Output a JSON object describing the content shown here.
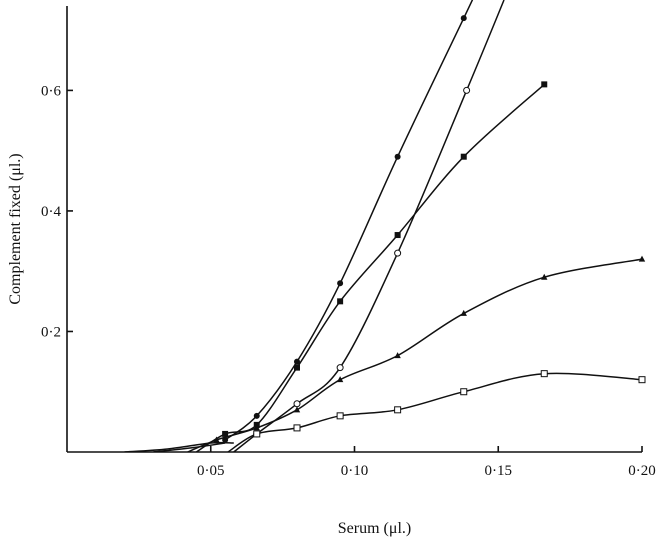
{
  "chart_data": {
    "type": "line",
    "xlabel": "Serum (μl.)",
    "ylabel": "Complement fixed (μl.)",
    "xlim": [
      0,
      0.2
    ],
    "ylim": [
      0,
      0.75
    ],
    "x_ticks": [
      {
        "value": 0.05,
        "label": "0·05"
      },
      {
        "value": 0.1,
        "label": "0·10"
      },
      {
        "value": 0.15,
        "label": "0·15"
      },
      {
        "value": 0.2,
        "label": "0·20"
      }
    ],
    "y_ticks": [
      {
        "value": 0.2,
        "label": "0·2"
      },
      {
        "value": 0.4,
        "label": "0·4"
      },
      {
        "value": 0.6,
        "label": "0·6"
      }
    ],
    "grid": false,
    "series": [
      {
        "marker": "filled-circle",
        "points": [
          [
            0.055,
            0.02
          ],
          [
            0.066,
            0.06
          ],
          [
            0.08,
            0.15
          ],
          [
            0.095,
            0.28
          ],
          [
            0.115,
            0.49
          ],
          [
            0.138,
            0.72
          ]
        ],
        "curve": [
          [
            0.055,
            0.02
          ],
          [
            0.066,
            0.06
          ],
          [
            0.08,
            0.15
          ],
          [
            0.095,
            0.28
          ],
          [
            0.115,
            0.49
          ],
          [
            0.138,
            0.72
          ],
          [
            0.141,
            0.75
          ]
        ]
      },
      {
        "marker": "open-circle",
        "points": [
          [
            0.066,
            0.03
          ],
          [
            0.08,
            0.08
          ],
          [
            0.095,
            0.14
          ],
          [
            0.115,
            0.33
          ],
          [
            0.139,
            0.6
          ]
        ],
        "curve": [
          [
            0.058,
            0.0
          ],
          [
            0.066,
            0.03
          ],
          [
            0.08,
            0.08
          ],
          [
            0.095,
            0.14
          ],
          [
            0.115,
            0.33
          ],
          [
            0.139,
            0.6
          ],
          [
            0.152,
            0.75
          ]
        ]
      },
      {
        "marker": "filled-square",
        "points": [
          [
            0.055,
            0.03
          ],
          [
            0.066,
            0.045
          ],
          [
            0.08,
            0.14
          ],
          [
            0.095,
            0.25
          ],
          [
            0.115,
            0.36
          ],
          [
            0.138,
            0.49
          ],
          [
            0.166,
            0.61
          ]
        ],
        "curve": [
          [
            0.045,
            0.0
          ],
          [
            0.055,
            0.03
          ],
          [
            0.066,
            0.045
          ],
          [
            0.08,
            0.14
          ],
          [
            0.095,
            0.25
          ],
          [
            0.115,
            0.36
          ],
          [
            0.138,
            0.49
          ],
          [
            0.166,
            0.61
          ]
        ]
      },
      {
        "marker": "filled-triangle",
        "points": [
          [
            0.052,
            0.02
          ],
          [
            0.066,
            0.04
          ],
          [
            0.08,
            0.07
          ],
          [
            0.095,
            0.12
          ],
          [
            0.115,
            0.16
          ],
          [
            0.138,
            0.23
          ],
          [
            0.166,
            0.29
          ],
          [
            0.2,
            0.32
          ]
        ],
        "curve": [
          [
            0.042,
            0.0
          ],
          [
            0.052,
            0.02
          ],
          [
            0.066,
            0.04
          ],
          [
            0.08,
            0.07
          ],
          [
            0.095,
            0.12
          ],
          [
            0.115,
            0.16
          ],
          [
            0.138,
            0.23
          ],
          [
            0.166,
            0.29
          ],
          [
            0.2,
            0.32
          ]
        ]
      },
      {
        "marker": "open-square",
        "points": [
          [
            0.066,
            0.03
          ],
          [
            0.08,
            0.04
          ],
          [
            0.095,
            0.06
          ],
          [
            0.115,
            0.07
          ],
          [
            0.138,
            0.1
          ],
          [
            0.166,
            0.13
          ],
          [
            0.2,
            0.12
          ]
        ],
        "curve": [
          [
            0.056,
            0.0
          ],
          [
            0.066,
            0.03
          ],
          [
            0.08,
            0.04
          ],
          [
            0.095,
            0.06
          ],
          [
            0.115,
            0.07
          ],
          [
            0.138,
            0.1
          ],
          [
            0.166,
            0.13
          ],
          [
            0.2,
            0.12
          ]
        ]
      },
      {
        "marker": "none",
        "points": [],
        "curve": [
          [
            0.02,
            0.0
          ],
          [
            0.035,
            0.005
          ],
          [
            0.05,
            0.015
          ],
          [
            0.058,
            0.015
          ]
        ]
      },
      {
        "marker": "none",
        "points": [],
        "curve": [
          [
            0.03,
            0.0
          ],
          [
            0.045,
            0.008
          ],
          [
            0.055,
            0.015
          ]
        ]
      }
    ]
  }
}
